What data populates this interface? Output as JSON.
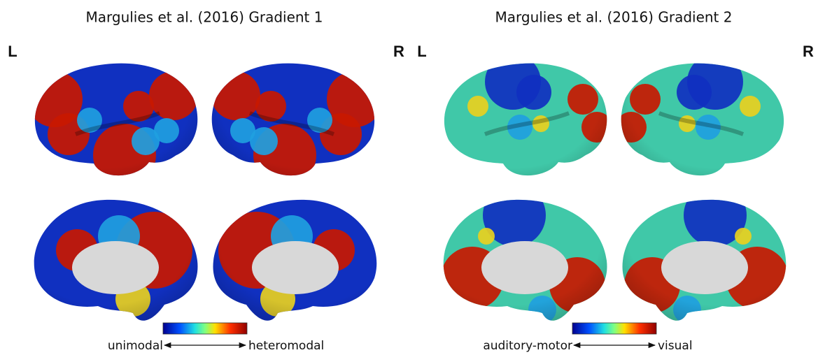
{
  "panels": [
    {
      "title": "Margulies et al. (2016) Gradient 1",
      "left_label": "L",
      "right_label": "R",
      "colorbar": {
        "low_label": "unimodal",
        "high_label": "heteromodal"
      }
    },
    {
      "title": "Margulies et al. (2016) Gradient 2",
      "left_label": "L",
      "right_label": "R",
      "colorbar": {
        "low_label": "auditory-motor",
        "high_label": "visual"
      }
    }
  ]
}
